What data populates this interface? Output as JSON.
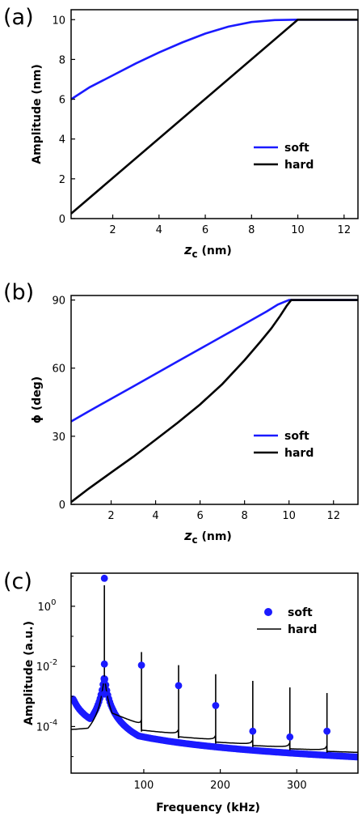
{
  "colors": {
    "soft": "#1a1aff",
    "hard": "#000000"
  },
  "chart_data": [
    {
      "panel": "(a)",
      "type": "line",
      "xlabel_italic": "z",
      "xlabel_sub": "c",
      "xlabel_rest": " (nm)",
      "ylabel": "Amplitude (nm)",
      "xlim": [
        0.2,
        12.6
      ],
      "ylim": [
        0,
        10.5
      ],
      "xticks": [
        2,
        4,
        6,
        8,
        10,
        12
      ],
      "yticks": [
        0,
        2,
        4,
        6,
        8,
        10
      ],
      "legend_position": "lower-right",
      "series": [
        {
          "name": "soft",
          "color": "#1a1aff",
          "x": [
            0.2,
            1,
            2,
            3,
            4,
            5,
            6,
            7,
            8,
            9,
            10,
            11,
            12,
            12.6
          ],
          "y": [
            6.0,
            6.6,
            7.2,
            7.8,
            8.35,
            8.85,
            9.3,
            9.65,
            9.88,
            9.98,
            10.0,
            10.0,
            10.0,
            10.0
          ]
        },
        {
          "name": "hard",
          "color": "#000000",
          "x": [
            0.2,
            10.0,
            10.3,
            12.6
          ],
          "y": [
            0.25,
            10.0,
            10.0,
            10.0
          ]
        }
      ]
    },
    {
      "panel": "(b)",
      "type": "line",
      "xlabel_italic": "z",
      "xlabel_sub": "c",
      "xlabel_rest": " (nm)",
      "ylabel": "ϕ (deg)",
      "xlim": [
        0.2,
        13.1
      ],
      "ylim": [
        0,
        92
      ],
      "xticks": [
        2,
        4,
        6,
        8,
        10,
        12
      ],
      "yticks": [
        0,
        30,
        60,
        90
      ],
      "legend_position": "lower-right",
      "series": [
        {
          "name": "soft",
          "color": "#1a1aff",
          "x": [
            0.2,
            1,
            2,
            3,
            4,
            5,
            6,
            7,
            8,
            9,
            9.5,
            10,
            10.2,
            13.1
          ],
          "y": [
            36.5,
            41,
            46.5,
            52,
            57.5,
            63,
            68.5,
            74,
            79.5,
            85,
            88,
            90,
            90,
            90
          ]
        },
        {
          "name": "hard",
          "color": "#000000",
          "x": [
            0.2,
            1,
            2,
            3,
            4,
            5,
            6,
            7,
            8,
            8.7,
            9.2,
            9.6,
            9.9,
            10.1,
            10.2,
            13.1
          ],
          "y": [
            1,
            7,
            14,
            21,
            28.5,
            36,
            44,
            53,
            63.5,
            71.5,
            77.5,
            83,
            87.5,
            90,
            90,
            90
          ]
        }
      ]
    },
    {
      "panel": "(c)",
      "type": "line",
      "xlabel": "Frequency (kHz)",
      "ylabel": "Amplitude (a.u.)",
      "xlim": [
        5,
        380
      ],
      "ylim_log10": [
        -5.55,
        1.1
      ],
      "y_scale": "log",
      "xticks": [
        100,
        200,
        300
      ],
      "yticks_exp": [
        -4,
        -2,
        0
      ],
      "legend_position": "top-right",
      "series": [
        {
          "name": "soft",
          "style": "markers",
          "color": "#1a1aff",
          "peaks_x": [
            48.5,
            97,
            145.5,
            194,
            242.5,
            291,
            339.5
          ],
          "peaks_y": [
            8.5,
            0.011,
            0.0023,
            0.0005,
            7e-05,
            4.5e-05,
            7e-05
          ],
          "center_x": 48.5,
          "baseline_low": 8.5e-05
        },
        {
          "name": "hard",
          "style": "line",
          "color": "#000000",
          "harmonics_x": [
            48.5,
            97,
            145.5,
            194,
            242.5,
            291,
            339.5
          ],
          "harmonics_top": [
            5,
            0.03,
            0.011,
            0.0055,
            0.0033,
            0.002,
            0.0013
          ],
          "baseline_before": [
            8e-05,
            0.00011,
            5.5e-05,
            3.5e-05,
            2.5e-05,
            2e-05,
            1.6e-05
          ],
          "baseline_after": [
            0.00035,
            7.5e-05,
            4.5e-05,
            3e-05,
            2.3e-05,
            1.8e-05,
            1.5e-05
          ]
        }
      ]
    }
  ]
}
